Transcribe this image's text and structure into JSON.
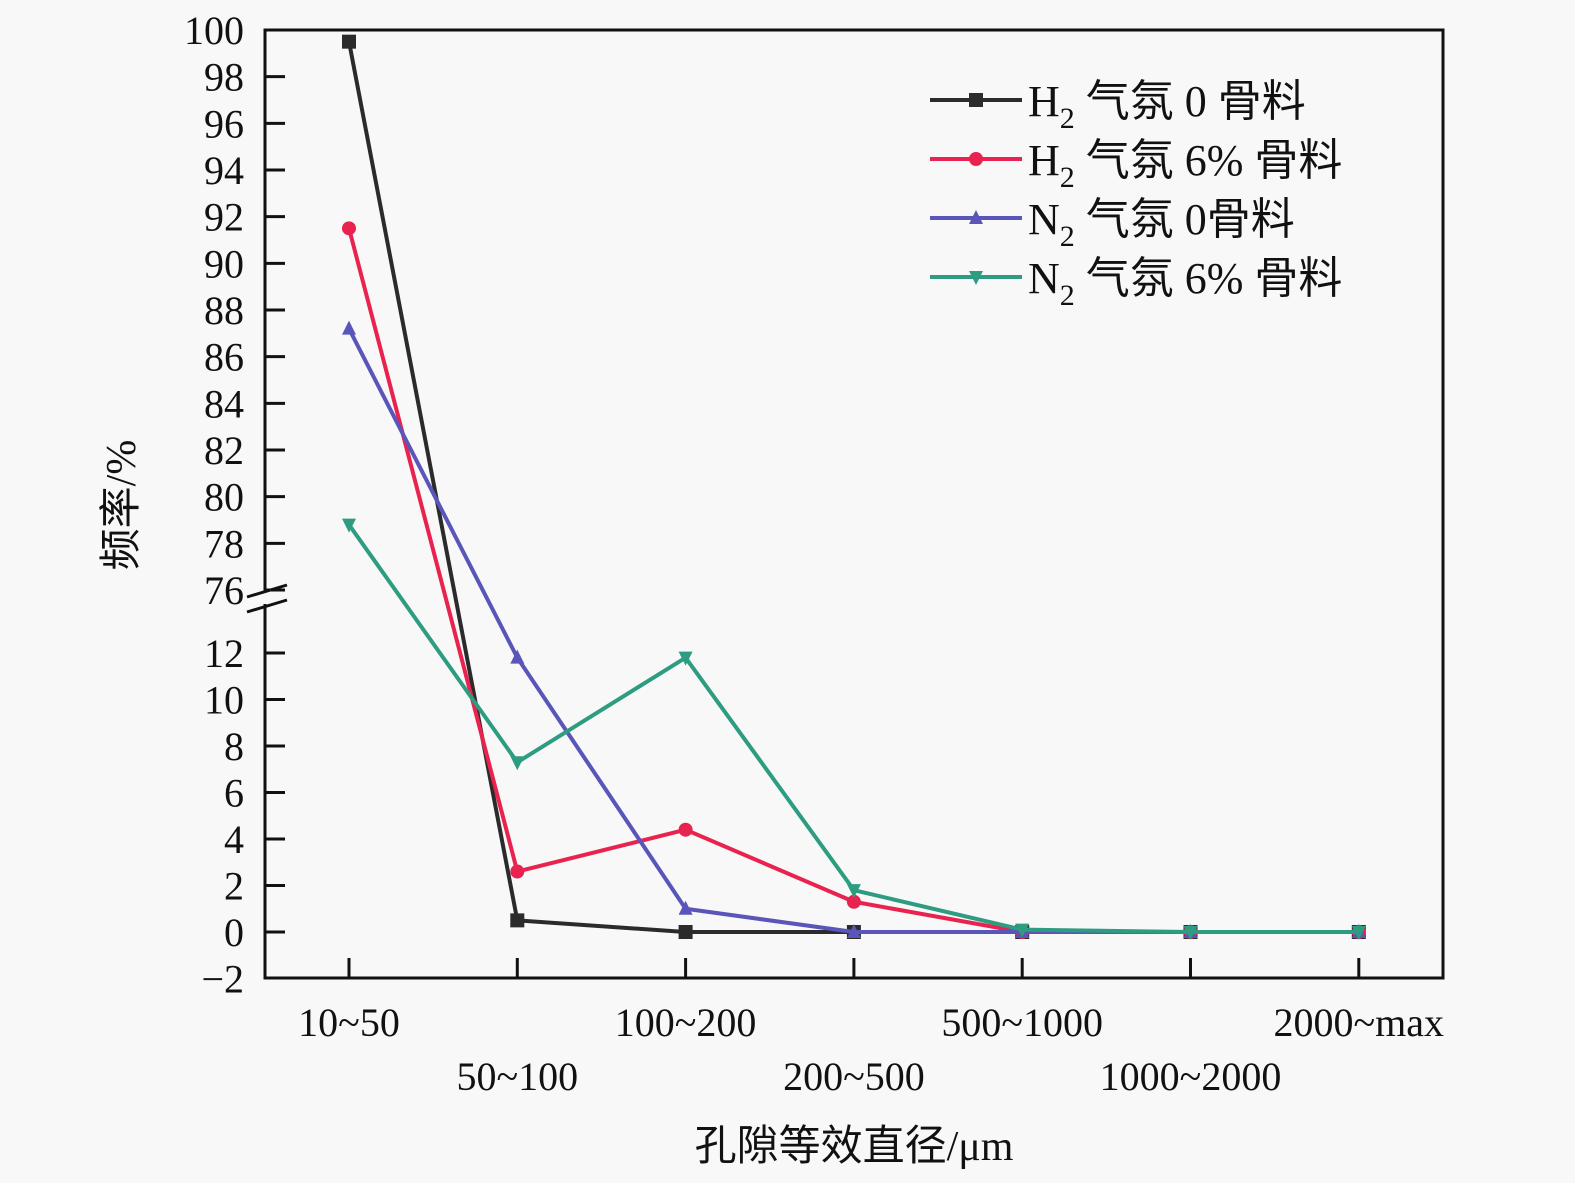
{
  "chart_data": {
    "type": "line",
    "xlabel": "孔隙等效直径/μm",
    "ylabel": "频率/%",
    "categories": [
      "10~50",
      "50~100",
      "100~200",
      "200~500",
      "500~1000",
      "1000~2000",
      "2000~max"
    ],
    "y_axis": {
      "broken": true,
      "upper_range": [
        76,
        100
      ],
      "lower_range": [
        -2,
        12
      ],
      "upper_ticks": [
        "100",
        "98",
        "96",
        "94",
        "92",
        "90",
        "88",
        "86",
        "84",
        "82",
        "80",
        "78",
        "76"
      ],
      "lower_ticks": [
        "12",
        "10",
        "8",
        "6",
        "4",
        "2",
        "0",
        "−2"
      ]
    },
    "grid": false,
    "legend_placement": "top-right",
    "series": [
      {
        "name": "H₂ 气氛 0 骨料",
        "color": "#2b2b2b",
        "marker": "square",
        "values": [
          99.5,
          0.5,
          0,
          0,
          0,
          0,
          0
        ]
      },
      {
        "name": "H₂ 气氛 6% 骨料",
        "color": "#e8234f",
        "marker": "circle",
        "values": [
          91.5,
          2.6,
          4.4,
          1.3,
          0,
          0,
          0
        ]
      },
      {
        "name": "N₂ 气氛 0骨料",
        "color": "#5a55b8",
        "marker": "triangle-up",
        "values": [
          87.2,
          11.8,
          1.0,
          0,
          0,
          0,
          0
        ]
      },
      {
        "name": "N₂ 气氛 6% 骨料",
        "color": "#2e9c80",
        "marker": "triangle-down",
        "values": [
          78.8,
          7.3,
          11.8,
          1.8,
          0.1,
          0,
          0
        ]
      }
    ]
  }
}
